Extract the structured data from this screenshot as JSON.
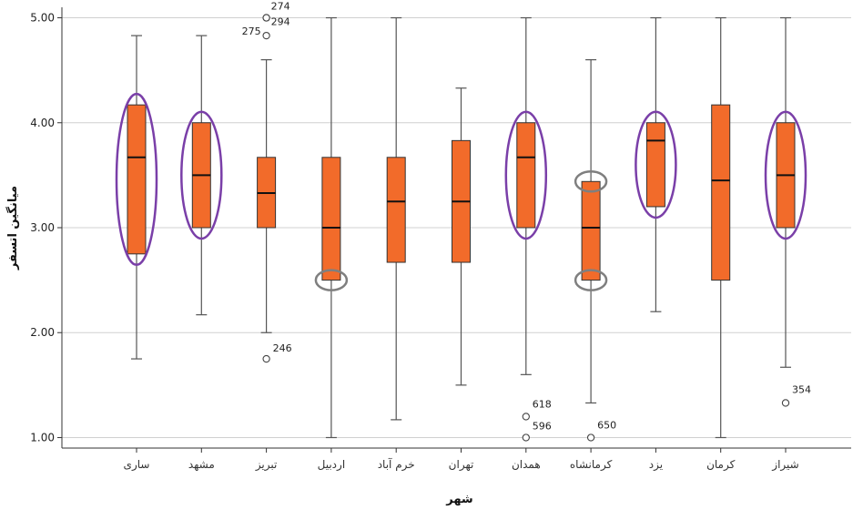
{
  "chart_data": {
    "type": "boxplot",
    "xlabel": "شهر",
    "ylabel": "میانگین اتسفر",
    "ylim": [
      0.9,
      5.1
    ],
    "yticks": [
      1.0,
      2.0,
      3.0,
      4.0,
      5.0
    ],
    "ytick_labels": [
      "1.00",
      "2.00",
      "3.00",
      "4.00",
      "5.00"
    ],
    "grid": true,
    "box_color": "#f26b2a",
    "ellipse_color_purple": "#7a3fa8",
    "ellipse_color_gray": "#7f7f7f",
    "categories": [
      "ساری",
      "مشهد",
      "تبریز",
      "اردبیل",
      "خرم آباد",
      "تهران",
      "همدان",
      "کرمانشاه",
      "یزد",
      "کرمان",
      "شیراز"
    ],
    "boxes": [
      {
        "category": "ساری",
        "min": 1.75,
        "q1": 2.75,
        "median": 3.67,
        "q3": 4.17,
        "max": 4.83,
        "outliers": [],
        "highlight": "purple"
      },
      {
        "category": "مشهد",
        "min": 2.17,
        "q1": 3.0,
        "median": 3.5,
        "q3": 4.0,
        "max": 4.83,
        "outliers": [],
        "highlight": "purple"
      },
      {
        "category": "تبریز",
        "min": 2.0,
        "q1": 3.0,
        "median": 3.33,
        "q3": 3.67,
        "max": 4.6,
        "outliers": [
          {
            "value": 5.0,
            "label": "274"
          },
          {
            "value": 5.0,
            "label": "294"
          },
          {
            "value": 4.83,
            "label": "275"
          },
          {
            "value": 1.75,
            "label": "246"
          }
        ],
        "highlight": "none"
      },
      {
        "category": "اردبیل",
        "min": 1.0,
        "q1": 2.5,
        "median": 3.0,
        "q3": 3.67,
        "max": 5.0,
        "outliers": [],
        "highlight": "gray-q1"
      },
      {
        "category": "خرم آباد",
        "min": 1.17,
        "q1": 2.67,
        "median": 3.25,
        "q3": 3.67,
        "max": 5.0,
        "outliers": [],
        "highlight": "none"
      },
      {
        "category": "تهران",
        "min": 1.5,
        "q1": 2.67,
        "median": 3.25,
        "q3": 3.83,
        "max": 4.33,
        "outliers": [],
        "highlight": "none"
      },
      {
        "category": "همدان",
        "min": 1.6,
        "q1": 3.0,
        "median": 3.67,
        "q3": 4.0,
        "max": 5.0,
        "outliers": [
          {
            "value": 1.2,
            "label": "618"
          },
          {
            "value": 1.0,
            "label": "596"
          }
        ],
        "highlight": "purple"
      },
      {
        "category": "کرمانشاه",
        "min": 1.33,
        "q1": 2.5,
        "median": 3.0,
        "q3": 3.44,
        "max": 4.6,
        "outliers": [
          {
            "value": 1.0,
            "label": "650"
          }
        ],
        "highlight": "gray-both"
      },
      {
        "category": "یزد",
        "min": 2.2,
        "q1": 3.2,
        "median": 3.83,
        "q3": 4.0,
        "max": 5.0,
        "outliers": [],
        "highlight": "purple"
      },
      {
        "category": "کرمان",
        "min": 1.0,
        "q1": 2.5,
        "median": 3.45,
        "q3": 4.17,
        "max": 5.0,
        "outliers": [],
        "highlight": "none"
      },
      {
        "category": "شیراز",
        "min": 1.67,
        "q1": 3.0,
        "median": 3.5,
        "q3": 4.0,
        "max": 5.0,
        "outliers": [
          {
            "value": 1.33,
            "label": "354"
          }
        ],
        "highlight": "purple"
      }
    ]
  }
}
